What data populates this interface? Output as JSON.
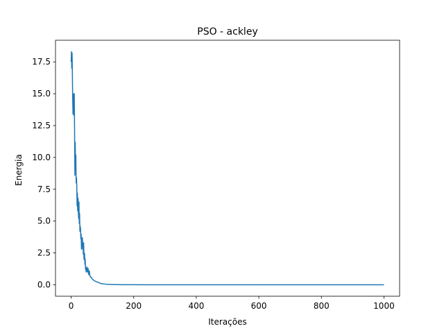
{
  "chart_data": {
    "type": "line",
    "title": "PSO - ackley",
    "xlabel": "Iterações",
    "ylabel": "Energia",
    "xlim": [
      -50,
      1050
    ],
    "ylim": [
      -0.9,
      19.2
    ],
    "xticks": [
      0,
      200,
      400,
      600,
      800,
      1000
    ],
    "xtick_labels": [
      "0",
      "200",
      "400",
      "600",
      "800",
      "1000"
    ],
    "yticks": [
      0.0,
      2.5,
      5.0,
      7.5,
      10.0,
      12.5,
      15.0,
      17.5
    ],
    "ytick_labels": [
      "0.0",
      "2.5",
      "5.0",
      "7.5",
      "10.0",
      "12.5",
      "15.0",
      "17.5"
    ],
    "grid": false,
    "series": [
      {
        "color": "#1f77b4",
        "x": [
          0,
          1,
          2,
          3,
          4,
          5,
          6,
          7,
          8,
          9,
          10,
          11,
          12,
          13,
          14,
          15,
          16,
          17,
          18,
          19,
          20,
          21,
          22,
          23,
          24,
          25,
          26,
          27,
          28,
          29,
          30,
          31,
          32,
          33,
          34,
          35,
          36,
          37,
          38,
          39,
          40,
          41,
          42,
          43,
          44,
          45,
          46,
          47,
          48,
          49,
          50,
          52,
          54,
          56,
          58,
          60,
          62,
          64,
          66,
          68,
          70,
          75,
          80,
          85,
          90,
          95,
          100,
          110,
          120,
          130,
          140,
          150,
          160,
          180,
          200,
          250,
          300,
          400,
          500,
          600,
          700,
          800,
          900,
          1000
        ],
        "y": [
          17.5,
          18.3,
          17.0,
          18.2,
          16.5,
          14.5,
          13.4,
          15.0,
          14.0,
          13.3,
          15.0,
          12.0,
          8.6,
          11.2,
          9.0,
          10.2,
          8.0,
          8.4,
          7.8,
          6.2,
          7.2,
          5.8,
          6.8,
          5.7,
          5.2,
          6.5,
          4.8,
          5.6,
          4.2,
          4.6,
          4.4,
          3.6,
          4.0,
          2.8,
          3.5,
          3.0,
          3.7,
          2.8,
          3.0,
          2.4,
          3.3,
          2.0,
          2.5,
          2.4,
          1.6,
          2.0,
          1.2,
          1.3,
          1.0,
          1.2,
          1.4,
          1.0,
          1.3,
          0.8,
          1.1,
          0.7,
          0.6,
          0.6,
          0.5,
          0.45,
          0.4,
          0.3,
          0.25,
          0.2,
          0.15,
          0.1,
          0.08,
          0.05,
          0.03,
          0.02,
          0.015,
          0.01,
          0.008,
          0.005,
          0.003,
          0.002,
          0.001,
          0.0,
          0.0,
          0.0,
          0.0,
          0.0,
          0.0,
          0.0
        ]
      }
    ]
  }
}
